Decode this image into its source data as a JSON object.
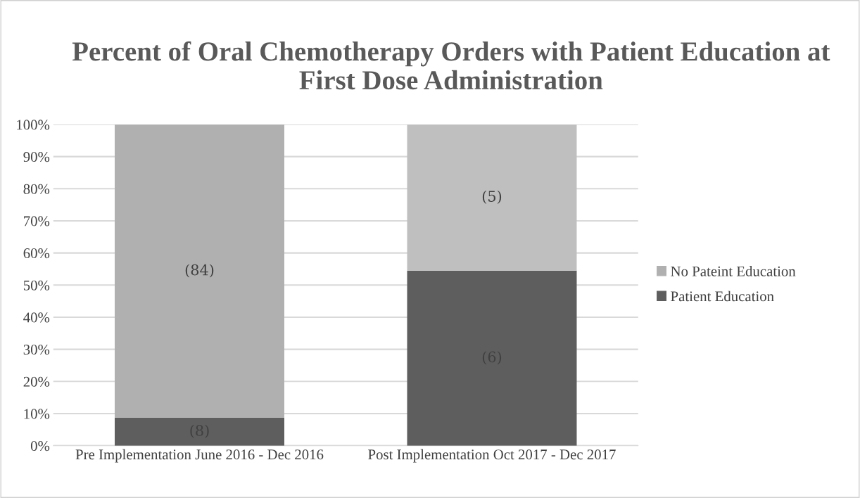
{
  "chart_data": {
    "type": "bar",
    "title": "Percent of Oral Chemotherapy Orders with Patient Education at First Dose Administration",
    "categories": [
      "Pre Implementation June 2016 - Dec 2016",
      "Post Implementation Oct 2017 - Dec 2017"
    ],
    "stacked": true,
    "series": [
      {
        "name": "Patient Education",
        "color": "#5e5e5e",
        "colors": [
          "#5e5e5e",
          "#5e5e5e"
        ],
        "values": [
          8.7,
          54.5
        ]
      },
      {
        "name": "No Pateint Education",
        "color": "#b0b0b0",
        "colors": [
          "#b0b0b0",
          "#bfbfbf"
        ],
        "values": [
          91.3,
          45.5
        ]
      }
    ],
    "annotations": [
      "(8)",
      "(84)",
      "(6)",
      "(5)"
    ],
    "ylim": [
      0,
      100
    ],
    "yticks": [
      {
        "value": 0,
        "label": "0%"
      },
      {
        "value": 10,
        "label": "10%"
      },
      {
        "value": 20,
        "label": "20%"
      },
      {
        "value": 30,
        "label": "30%"
      },
      {
        "value": 40,
        "label": "40%"
      },
      {
        "value": 50,
        "label": "50%"
      },
      {
        "value": 60,
        "label": "60%"
      },
      {
        "value": 70,
        "label": "70%"
      },
      {
        "value": 80,
        "label": "80%"
      },
      {
        "value": 90,
        "label": "90%"
      },
      {
        "value": 100,
        "label": "100%"
      }
    ],
    "grid": "y",
    "legend": "right"
  }
}
